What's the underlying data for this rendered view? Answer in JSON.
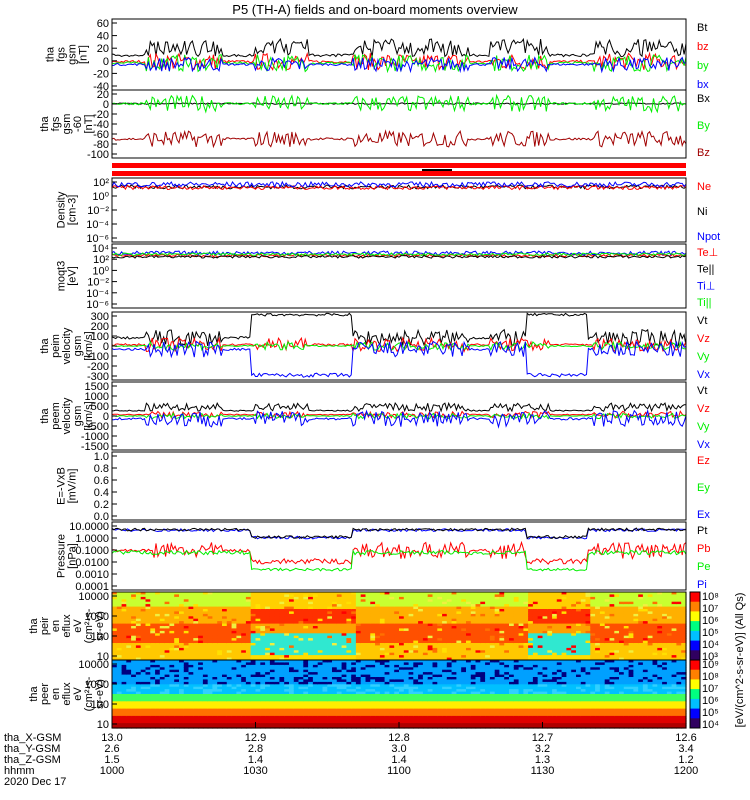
{
  "title": "P5 (TH-A) fields and on-board moments overview",
  "colors": {
    "black": "#000000",
    "red": "#ff0000",
    "green": "#00ee00",
    "blue": "#0000ff",
    "darkred": "#a00000",
    "axis": "#000000"
  },
  "chart_data": [
    {
      "type": "line",
      "ylabel": [
        "tha",
        "fgs",
        "gsm",
        "[nT]"
      ],
      "yticks": [
        "60",
        "40",
        "20",
        "0",
        "-20",
        "-40"
      ],
      "ylim": [
        -45,
        65
      ],
      "legend": [
        {
          "name": "Bt",
          "color": "#000000"
        },
        {
          "name": "bz",
          "color": "#ff0000"
        },
        {
          "name": "by",
          "color": "#00ee00"
        },
        {
          "name": "bx",
          "color": "#0000ff"
        }
      ]
    },
    {
      "type": "line",
      "ylabel": [
        "tha",
        "fgs",
        "gsm",
        "-60",
        "[nT]"
      ],
      "yticks": [
        "20",
        "0",
        "-20",
        "-40",
        "-60",
        "-80",
        "-100"
      ],
      "ylim": [
        -110,
        25
      ],
      "legend": [
        {
          "name": "Bx",
          "color": "#000000"
        },
        {
          "name": "By",
          "color": "#00ee00"
        },
        {
          "name": "Bz",
          "color": "#a00000"
        }
      ]
    },
    {
      "type": "line",
      "ylabel": [
        "Density",
        "[cm-3]"
      ],
      "yticks": [
        "10²",
        "10⁰",
        "10⁻²",
        "10⁻⁴",
        "10⁻⁶"
      ],
      "legend": [
        {
          "name": "Ne",
          "color": "#ff0000"
        },
        {
          "name": "Ni",
          "color": "#000000"
        },
        {
          "name": "Npot",
          "color": "#0000ff"
        }
      ]
    },
    {
      "type": "line",
      "ylabel": [
        "moqt3",
        "[eV]"
      ],
      "yticks": [
        "10⁴",
        "10²",
        "10⁰",
        "10⁻²",
        "10⁻⁴",
        "10⁻⁶"
      ],
      "legend": [
        {
          "name": "Te⊥",
          "color": "#ff0000"
        },
        {
          "name": "Te||",
          "color": "#000000"
        },
        {
          "name": "Ti⊥",
          "color": "#0000ff"
        },
        {
          "name": "Ti||",
          "color": "#00ee00"
        }
      ]
    },
    {
      "type": "line",
      "ylabel": [
        "tha",
        "peim",
        "velocity",
        "gsm",
        "[km/s]"
      ],
      "yticks": [
        "300",
        "200",
        "100",
        "0",
        "-100",
        "-200",
        "-300"
      ],
      "ylim": [
        -330,
        330
      ],
      "legend": [
        {
          "name": "Vt",
          "color": "#000000"
        },
        {
          "name": "Vz",
          "color": "#ff0000"
        },
        {
          "name": "Vy",
          "color": "#00ee00"
        },
        {
          "name": "Vx",
          "color": "#0000ff"
        }
      ]
    },
    {
      "type": "line",
      "ylabel": [
        "tha",
        "peem",
        "velocity",
        "gsm",
        "[km/s]"
      ],
      "yticks": [
        "1500",
        "1000",
        "500",
        "0",
        "-500",
        "-1000",
        "-1500"
      ],
      "ylim": [
        -1600,
        1600
      ],
      "legend": [
        {
          "name": "Vt",
          "color": "#000000"
        },
        {
          "name": "Vz",
          "color": "#ff0000"
        },
        {
          "name": "Vy",
          "color": "#00ee00"
        },
        {
          "name": "Vx",
          "color": "#0000ff"
        }
      ]
    },
    {
      "type": "line",
      "ylabel": [
        "E=-VxB",
        "[mV/m]"
      ],
      "yticks": [
        "1.0",
        "0.8",
        "0.6",
        "0.4",
        "0.2",
        "0.0"
      ],
      "ylim": [
        0,
        1
      ],
      "legend": [
        {
          "name": "Ez",
          "color": "#ff0000"
        },
        {
          "name": "Ey",
          "color": "#00ee00"
        },
        {
          "name": "Ex",
          "color": "#0000ff"
        }
      ]
    },
    {
      "type": "line",
      "ylabel": [
        "Pressure",
        "[nPa]"
      ],
      "yticks": [
        "10.0000",
        "1.0000",
        "0.1000",
        "0.0100",
        "0.0010",
        "0.0001"
      ],
      "legend": [
        {
          "name": "Pt",
          "color": "#000000"
        },
        {
          "name": "Pb",
          "color": "#ff0000"
        },
        {
          "name": "Pe",
          "color": "#00ee00"
        },
        {
          "name": "Pi",
          "color": "#0000ff"
        }
      ]
    },
    {
      "type": "heatmap",
      "ylabel": [
        "tha",
        "peir",
        "en",
        "eflux",
        "eV",
        "(cm²-s-",
        "sr-eV)"
      ],
      "yticks": [
        "10000",
        "1000",
        "100",
        "10"
      ],
      "colorbar": {
        "ticks": [
          "10⁸",
          "10⁷",
          "10⁶",
          "10⁵",
          "10⁴",
          "10³"
        ],
        "label": "[eV/(cm^2-s-sr-eV)] (All Qs)"
      }
    },
    {
      "type": "heatmap",
      "ylabel": [
        "tha",
        "peer",
        "en",
        "eflux",
        "eV",
        "(cm²-s-",
        "sr-eV)"
      ],
      "yticks": [
        "10000",
        "1000",
        "100",
        "10"
      ],
      "colorbar": {
        "ticks": [
          "10⁹",
          "10⁸",
          "10⁷",
          "10⁶",
          "10⁵",
          "10⁴"
        ],
        "label": "[eV/(cm^2-s-sr-eV)]"
      }
    }
  ],
  "x_axis": {
    "label_rows": [
      "tha_X-GSM",
      "tha_Y-GSM",
      "tha_Z-GSM",
      "hhmm",
      "2020 Dec 17"
    ],
    "ticks": [
      {
        "x": "13.0",
        "y": "2.6",
        "z": "1.5",
        "t": "1000"
      },
      {
        "x": "12.9",
        "y": "2.8",
        "z": "1.4",
        "t": "1030"
      },
      {
        "x": "12.8",
        "y": "3.0",
        "z": "1.4",
        "t": "1100"
      },
      {
        "x": "12.7",
        "y": "3.2",
        "z": "1.3",
        "t": "1130"
      },
      {
        "x": "12.6",
        "y": "3.4",
        "z": "1.2",
        "t": "1200"
      }
    ]
  }
}
